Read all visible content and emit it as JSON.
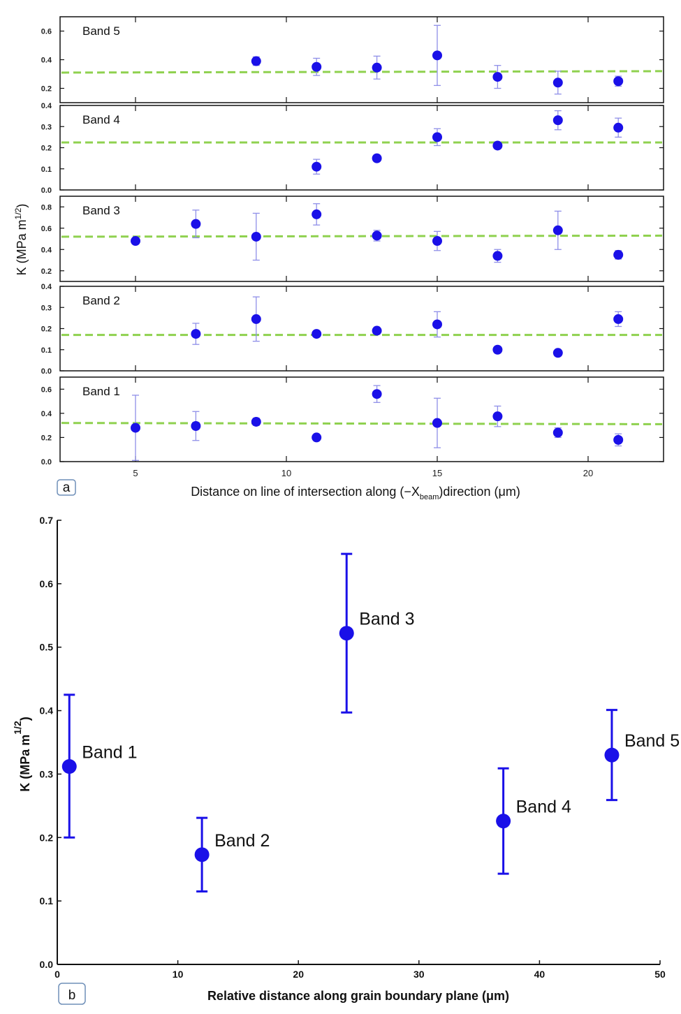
{
  "chart_data": [
    {
      "type": "scatter",
      "panel_label": "a",
      "ylabel": "K (MPa m",
      "ylabel_sup": "1/2",
      "ylabel_end": ")",
      "xlabel": "Distance on line of intersection along (−X",
      "xlabel_sub": "beam",
      "xlabel_end": ")direction (μm)",
      "xlim": [
        2.5,
        22.5
      ],
      "xticks": [
        "5",
        "10",
        "15",
        "20"
      ],
      "xtick_values": [
        5,
        10,
        15,
        20
      ],
      "marker_color": "#1a10e8",
      "errorbar_color": "#8f8fe8",
      "mean_line_color": "#8fd14f",
      "panels": [
        {
          "name": "Band 5",
          "ylim": [
            0.1,
            0.7
          ],
          "yticks": [
            "0.2",
            "0.4",
            "0.6"
          ],
          "ytick_values": [
            0.2,
            0.4,
            0.6
          ],
          "mean_line": [
            0.31,
            0.32
          ],
          "points": [
            {
              "x": 9,
              "y": 0.39,
              "err": 0.03
            },
            {
              "x": 11,
              "y": 0.35,
              "err": 0.06
            },
            {
              "x": 13,
              "y": 0.345,
              "err": 0.08
            },
            {
              "x": 15,
              "y": 0.43,
              "err": 0.21
            },
            {
              "x": 17,
              "y": 0.28,
              "err": 0.08
            },
            {
              "x": 19,
              "y": 0.24,
              "err": 0.08
            },
            {
              "x": 21,
              "y": 0.25,
              "err": 0.035
            }
          ]
        },
        {
          "name": "Band 4",
          "ylim": [
            0.0,
            0.4
          ],
          "yticks": [
            "0.0",
            "0.1",
            "0.2",
            "0.3",
            "0.4"
          ],
          "ytick_values": [
            0.0,
            0.1,
            0.2,
            0.3,
            0.4
          ],
          "mean_line": [
            0.225,
            0.225
          ],
          "points": [
            {
              "x": 11,
              "y": 0.11,
              "err": 0.035
            },
            {
              "x": 13,
              "y": 0.15,
              "err": 0.0
            },
            {
              "x": 15,
              "y": 0.25,
              "err": 0.04
            },
            {
              "x": 17,
              "y": 0.21,
              "err": 0.015
            },
            {
              "x": 19,
              "y": 0.33,
              "err": 0.045
            },
            {
              "x": 21,
              "y": 0.295,
              "err": 0.045
            }
          ]
        },
        {
          "name": "Band 3",
          "ylim": [
            0.1,
            0.9
          ],
          "yticks": [
            "0.2",
            "0.4",
            "0.6",
            "0.8"
          ],
          "ytick_values": [
            0.2,
            0.4,
            0.6,
            0.8
          ],
          "mean_line": [
            0.52,
            0.53
          ],
          "points": [
            {
              "x": 5,
              "y": 0.48,
              "err": 0.0
            },
            {
              "x": 7,
              "y": 0.64,
              "err": 0.13
            },
            {
              "x": 9,
              "y": 0.52,
              "err": 0.22
            },
            {
              "x": 11,
              "y": 0.73,
              "err": 0.1
            },
            {
              "x": 13,
              "y": 0.53,
              "err": 0.05
            },
            {
              "x": 15,
              "y": 0.48,
              "err": 0.09
            },
            {
              "x": 17,
              "y": 0.34,
              "err": 0.06
            },
            {
              "x": 19,
              "y": 0.58,
              "err": 0.18
            },
            {
              "x": 21,
              "y": 0.35,
              "err": 0.04
            }
          ]
        },
        {
          "name": "Band 2",
          "ylim": [
            0.0,
            0.4
          ],
          "yticks": [
            "0.0",
            "0.1",
            "0.2",
            "0.3",
            "0.4"
          ],
          "ytick_values": [
            0.0,
            0.1,
            0.2,
            0.3,
            0.4
          ],
          "mean_line": [
            0.17,
            0.17
          ],
          "points": [
            {
              "x": 7,
              "y": 0.175,
              "err": 0.05
            },
            {
              "x": 9,
              "y": 0.245,
              "err": 0.105
            },
            {
              "x": 11,
              "y": 0.175,
              "err": 0.0
            },
            {
              "x": 13,
              "y": 0.19,
              "err": 0.0
            },
            {
              "x": 15,
              "y": 0.22,
              "err": 0.06
            },
            {
              "x": 17,
              "y": 0.1,
              "err": 0.015
            },
            {
              "x": 19,
              "y": 0.085,
              "err": 0.0
            },
            {
              "x": 21,
              "y": 0.245,
              "err": 0.035
            }
          ]
        },
        {
          "name": "Band 1",
          "ylim": [
            0.0,
            0.7
          ],
          "yticks": [
            "0.0",
            "0.2",
            "0.4",
            "0.6"
          ],
          "ytick_values": [
            0.0,
            0.2,
            0.4,
            0.6
          ],
          "mean_line": [
            0.32,
            0.31
          ],
          "points": [
            {
              "x": 5,
              "y": 0.28,
              "err": 0.27
            },
            {
              "x": 7,
              "y": 0.295,
              "err": 0.12
            },
            {
              "x": 9,
              "y": 0.33,
              "err": 0.03
            },
            {
              "x": 11,
              "y": 0.2,
              "err": 0.0
            },
            {
              "x": 13,
              "y": 0.56,
              "err": 0.07
            },
            {
              "x": 15,
              "y": 0.32,
              "err": 0.205
            },
            {
              "x": 17,
              "y": 0.375,
              "err": 0.085
            },
            {
              "x": 19,
              "y": 0.24,
              "err": 0.04
            },
            {
              "x": 21,
              "y": 0.18,
              "err": 0.05
            }
          ]
        }
      ]
    },
    {
      "type": "scatter",
      "panel_label": "b",
      "ylabel": "K (MPa m",
      "ylabel_sup": "1/2",
      "ylabel_end": ")",
      "xlabel": "Relative distance along grain boundary plane (μm)",
      "xlim": [
        0,
        50
      ],
      "ylim": [
        0.0,
        0.7
      ],
      "xticks": [
        "0",
        "10",
        "20",
        "30",
        "40",
        "50"
      ],
      "xtick_values": [
        0,
        10,
        20,
        30,
        40,
        50
      ],
      "yticks": [
        "0.0",
        "0.1",
        "0.2",
        "0.3",
        "0.4",
        "0.5",
        "0.6",
        "0.7"
      ],
      "ytick_values": [
        0.0,
        0.1,
        0.2,
        0.3,
        0.4,
        0.5,
        0.6,
        0.7
      ],
      "marker_color": "#1a10e8",
      "points": [
        {
          "label": "Band 1",
          "x": 1,
          "y": 0.312,
          "ylow": 0.2,
          "yhigh": 0.425
        },
        {
          "label": "Band 2",
          "x": 12,
          "y": 0.173,
          "ylow": 0.115,
          "yhigh": 0.231
        },
        {
          "label": "Band 3",
          "x": 24,
          "y": 0.522,
          "ylow": 0.397,
          "yhigh": 0.647
        },
        {
          "label": "Band 4",
          "x": 37,
          "y": 0.226,
          "ylow": 0.143,
          "yhigh": 0.309
        },
        {
          "label": "Band 5",
          "x": 46,
          "y": 0.33,
          "ylow": 0.259,
          "yhigh": 0.401
        }
      ]
    }
  ]
}
